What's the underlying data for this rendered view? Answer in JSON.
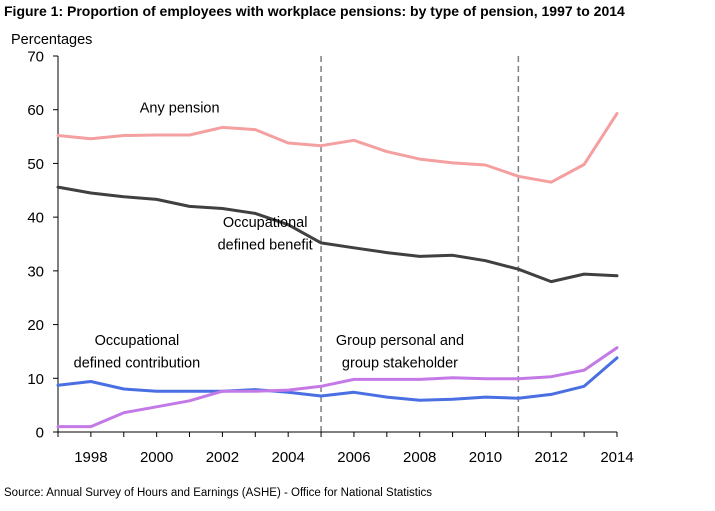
{
  "title": "Figure 1: Proportion of employees with workplace pensions: by type of pension, 1997 to 2014",
  "source": "Source: Annual Survey of Hours and Earnings (ASHE) - Office for National Statistics",
  "chart_data": {
    "type": "line",
    "ylabel": "Percentages",
    "xlabel": "",
    "ylim": [
      0,
      70
    ],
    "xlim": [
      1997,
      2014
    ],
    "y_ticks": [
      0,
      10,
      20,
      30,
      40,
      50,
      60,
      70
    ],
    "x_ticks": [
      1998,
      2000,
      2002,
      2004,
      2006,
      2008,
      2010,
      2012,
      2014
    ],
    "grid": false,
    "legend": "none",
    "x": [
      1997,
      1998,
      1999,
      2000,
      2001,
      2002,
      2003,
      2004,
      2005,
      2006,
      2007,
      2008,
      2009,
      2010,
      2011,
      2012,
      2013,
      2014
    ],
    "series": [
      {
        "name": "Any pension",
        "color": "#f4a0a0",
        "values": [
          55.2,
          54.6,
          55.2,
          55.3,
          55.3,
          56.7,
          56.3,
          53.8,
          53.3,
          54.3,
          52.2,
          50.8,
          50.1,
          49.7,
          47.6,
          46.5,
          49.8,
          59.3
        ]
      },
      {
        "name": "Occupational defined benefit",
        "color": "#404040",
        "values": [
          45.6,
          44.5,
          43.8,
          43.3,
          42.0,
          41.6,
          40.7,
          38.6,
          35.2,
          34.3,
          33.4,
          32.7,
          32.9,
          31.9,
          30.3,
          28.0,
          29.4,
          29.1
        ]
      },
      {
        "name": "Occupational defined contribution",
        "color": "#4a6fe3",
        "values": [
          8.7,
          9.4,
          8.0,
          7.6,
          7.6,
          7.6,
          7.9,
          7.4,
          6.7,
          7.4,
          6.5,
          5.9,
          6.1,
          6.5,
          6.3,
          7.0,
          8.5,
          13.8
        ]
      },
      {
        "name": "Group personal and group stakeholder",
        "color": "#c47ae6",
        "values": [
          1.0,
          1.0,
          3.6,
          4.7,
          5.8,
          7.6,
          7.6,
          7.8,
          8.5,
          9.8,
          9.8,
          9.8,
          10.1,
          9.9,
          9.9,
          10.3,
          11.5,
          15.7
        ]
      }
    ],
    "reference_lines_x": [
      2005,
      2011
    ],
    "annotations": [
      {
        "text": "Any pension",
        "x": 2000.7,
        "y": 59.5
      },
      {
        "text": "Occupational",
        "x": 2003.3,
        "y": 38.2
      },
      {
        "text": "defined benefit",
        "x": 2003.3,
        "y": 34.0
      },
      {
        "text": "Occupational",
        "x": 1999.4,
        "y": 16.2
      },
      {
        "text": "defined contribution",
        "x": 1999.4,
        "y": 12.0
      },
      {
        "text": "Group personal and",
        "x": 2007.4,
        "y": 16.2
      },
      {
        "text": "group stakeholder",
        "x": 2007.4,
        "y": 12.0
      }
    ]
  }
}
